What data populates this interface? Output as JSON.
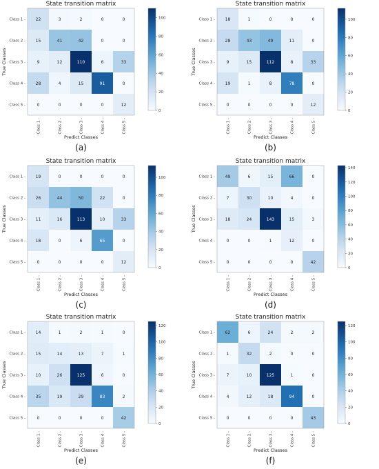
{
  "chart_data": [
    {
      "type": "heatmap",
      "panel_label": "(a)",
      "title": "State transition matrix",
      "xlabel": "Predict Classes",
      "ylabel": "True Classes",
      "categories": [
        "Class 1",
        "Class 2",
        "Class 3",
        "Class 4",
        "Class 5"
      ],
      "values": [
        [
          22,
          3,
          2,
          0,
          0
        ],
        [
          15,
          41,
          42,
          0,
          0
        ],
        [
          9,
          12,
          110,
          6,
          33
        ],
        [
          28,
          4,
          15,
          91,
          0
        ],
        [
          0,
          0,
          0,
          0,
          12
        ]
      ],
      "colorbar_ticks": [
        0,
        20,
        40,
        60,
        80,
        100
      ],
      "vmax": 110,
      "cmap": [
        "#f7fbff",
        "#08306b"
      ]
    },
    {
      "type": "heatmap",
      "panel_label": "(b)",
      "title": "State transition matrix",
      "xlabel": "Predict Classes",
      "ylabel": "True Classes",
      "categories": [
        "Class 1",
        "Class 2",
        "Class 3",
        "Class 4",
        "Class 5"
      ],
      "values": [
        [
          18,
          1,
          0,
          0,
          0
        ],
        [
          28,
          43,
          49,
          11,
          0
        ],
        [
          9,
          15,
          112,
          8,
          33
        ],
        [
          19,
          1,
          8,
          78,
          0
        ],
        [
          0,
          0,
          0,
          0,
          12
        ]
      ],
      "colorbar_ticks": [
        0,
        20,
        40,
        60,
        80,
        100
      ],
      "vmax": 112,
      "cmap": [
        "#f7fbff",
        "#08306b"
      ]
    },
    {
      "type": "heatmap",
      "panel_label": "(c)",
      "title": "State transition matrix",
      "xlabel": "Predict Classes",
      "ylabel": "True Classes",
      "categories": [
        "Class 1",
        "Class 2",
        "Class 3",
        "Class 4",
        "Class 5"
      ],
      "values": [
        [
          19,
          0,
          0,
          0,
          0
        ],
        [
          26,
          44,
          50,
          22,
          0
        ],
        [
          11,
          16,
          113,
          10,
          33
        ],
        [
          18,
          0,
          6,
          65,
          0
        ],
        [
          0,
          0,
          0,
          0,
          12
        ]
      ],
      "colorbar_ticks": [
        0,
        20,
        40,
        60,
        80,
        100
      ],
      "vmax": 113,
      "cmap": [
        "#f7fbff",
        "#08306b"
      ]
    },
    {
      "type": "heatmap",
      "panel_label": "(d)",
      "title": "State transition matrix",
      "xlabel": "Predict Classes",
      "ylabel": "True Classes",
      "categories": [
        "Class 1",
        "Class 2",
        "Class 3",
        "Class 4",
        "Class 5"
      ],
      "values": [
        [
          49,
          6,
          15,
          66,
          0
        ],
        [
          7,
          30,
          10,
          4,
          0
        ],
        [
          18,
          24,
          143,
          15,
          3
        ],
        [
          0,
          0,
          1,
          12,
          0
        ],
        [
          0,
          0,
          0,
          0,
          42
        ]
      ],
      "colorbar_ticks": [
        0,
        20,
        40,
        60,
        80,
        100,
        120,
        140
      ],
      "vmax": 143,
      "cmap": [
        "#f7fbff",
        "#08306b"
      ]
    },
    {
      "type": "heatmap",
      "panel_label": "(e)",
      "title": "State transition matrix",
      "xlabel": "Predict Classes",
      "ylabel": "True Classes",
      "categories": [
        "Class 1",
        "Class 2",
        "Class 3",
        "Class 4",
        "Class 5"
      ],
      "values": [
        [
          14,
          1,
          2,
          1,
          0
        ],
        [
          15,
          14,
          13,
          7,
          1
        ],
        [
          10,
          26,
          125,
          6,
          0
        ],
        [
          35,
          19,
          29,
          83,
          2
        ],
        [
          0,
          0,
          0,
          0,
          42
        ]
      ],
      "colorbar_ticks": [
        0,
        20,
        40,
        60,
        80,
        100,
        120
      ],
      "vmax": 125,
      "cmap": [
        "#f7fbff",
        "#08306b"
      ]
    },
    {
      "type": "heatmap",
      "panel_label": "(f)",
      "title": "State transition matrix",
      "xlabel": "Predict Classes",
      "ylabel": "True Classes",
      "categories": [
        "Class 1",
        "Class 2",
        "Class 3",
        "Class 4",
        "Class 5"
      ],
      "values": [
        [
          62,
          6,
          24,
          2,
          2
        ],
        [
          1,
          32,
          2,
          0,
          0
        ],
        [
          7,
          10,
          125,
          1,
          0
        ],
        [
          4,
          12,
          18,
          94,
          0
        ],
        [
          0,
          0,
          0,
          0,
          43
        ]
      ],
      "colorbar_ticks": [
        0,
        20,
        40,
        60,
        80,
        100,
        120
      ],
      "vmax": 125,
      "cmap": [
        "#f7fbff",
        "#08306b"
      ]
    }
  ]
}
